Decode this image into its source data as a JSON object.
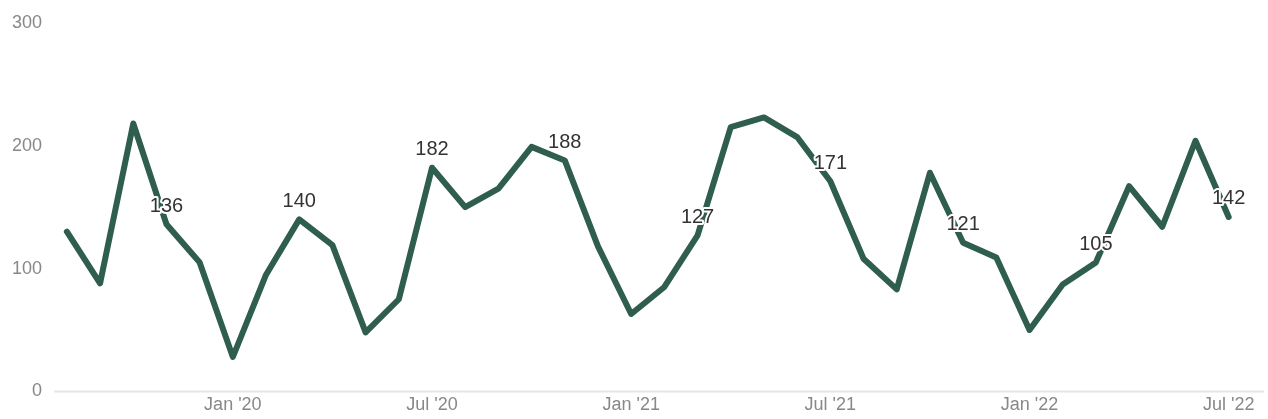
{
  "chart_data": {
    "type": "line",
    "x": [
      "2019-08",
      "2019-09",
      "2019-10",
      "2019-11",
      "2019-12",
      "2020-01",
      "2020-02",
      "2020-03",
      "2020-04",
      "2020-05",
      "2020-06",
      "2020-07",
      "2020-08",
      "2020-09",
      "2020-10",
      "2020-11",
      "2020-12",
      "2021-01",
      "2021-02",
      "2021-03",
      "2021-04",
      "2021-05",
      "2021-06",
      "2021-07",
      "2021-08",
      "2021-09",
      "2021-10",
      "2021-11",
      "2021-12",
      "2022-01",
      "2022-02",
      "2022-03",
      "2022-04",
      "2022-05",
      "2022-06",
      "2022-07"
    ],
    "series": [
      {
        "color": "#2f5d4e",
        "values": [
          130,
          88,
          218,
          136,
          105,
          28,
          95,
          140,
          119,
          48,
          75,
          182,
          150,
          165,
          199,
          188,
          118,
          63,
          85,
          127,
          215,
          223,
          207,
          171,
          108,
          83,
          178,
          121,
          109,
          50,
          87,
          105,
          167,
          134,
          204,
          142
        ],
        "value_labels": [
          null,
          null,
          null,
          "136",
          null,
          null,
          null,
          "140",
          null,
          null,
          null,
          "182",
          null,
          null,
          null,
          "188",
          null,
          null,
          null,
          "127",
          null,
          null,
          null,
          "171",
          null,
          null,
          null,
          "121",
          null,
          null,
          null,
          "105",
          null,
          null,
          null,
          "142"
        ]
      }
    ],
    "xlim": [
      "2019-07-20",
      "2022-08-03"
    ],
    "xticks": [
      {
        "value": "2020-01",
        "label": "Jan '20"
      },
      {
        "value": "2020-07",
        "label": "Jul '20"
      },
      {
        "value": "2021-01",
        "label": "Jan '21"
      },
      {
        "value": "2021-07",
        "label": "Jul '21"
      },
      {
        "value": "2022-01",
        "label": "Jan '22"
      },
      {
        "value": "2022-07",
        "label": "Jul '22"
      }
    ],
    "ylim": [
      0,
      300
    ],
    "yticks": [
      0,
      100,
      200,
      300
    ],
    "grid": false,
    "legend": false,
    "marker": "none",
    "line_style": "solid"
  }
}
